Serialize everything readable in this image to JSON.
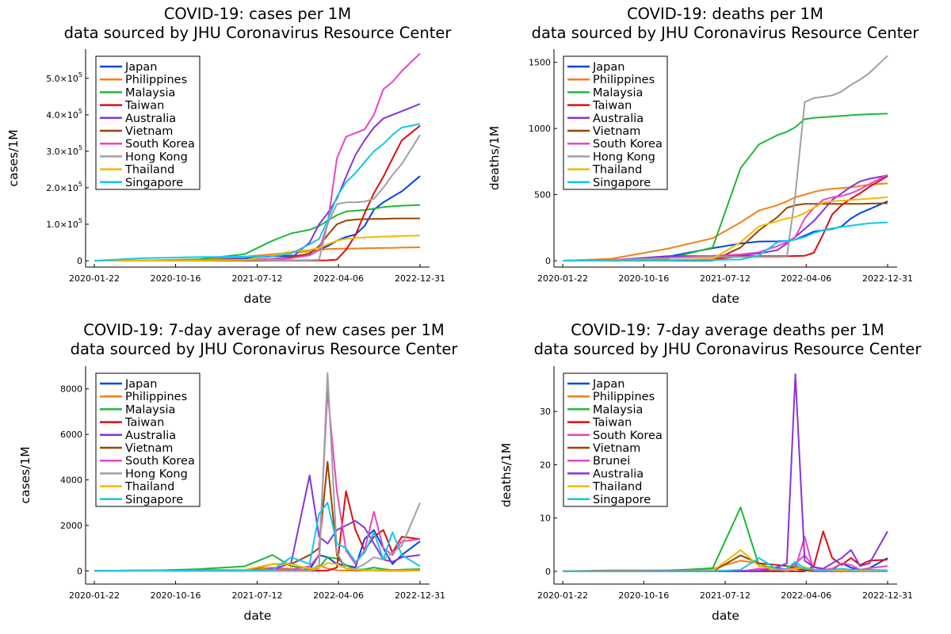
{
  "x_ticks": [
    "2020-01-22",
    "2020-10-16",
    "2021-07-12",
    "2022-04-06",
    "2022-12-31"
  ],
  "x_anchor_dates": [
    "2020-01-22",
    "2020-07-01",
    "2021-01-01",
    "2021-06-01",
    "2021-09-01",
    "2021-11-01",
    "2022-01-01",
    "2022-02-01",
    "2022-03-01",
    "2022-04-01",
    "2022-05-01",
    "2022-06-01",
    "2022-07-01",
    "2022-08-01",
    "2022-09-01",
    "2022-10-01",
    "2022-11-01",
    "2022-12-31"
  ],
  "colors": {
    "Japan": "#0044ee",
    "Philippines": "#f57f17",
    "Malaysia": "#1db83a",
    "Taiwan": "#dd0f0f",
    "Australia": "#8833dd",
    "Vietnam": "#994400",
    "South Korea": "#e846c1",
    "Hong Kong": "#a0a0a0",
    "Thailand": "#f5b800",
    "Singapore": "#11c8ee",
    "Brunei": "#e846c1"
  },
  "chart_data": [
    {
      "type": "line",
      "title": "COVID-19: cases per 1M",
      "subtitle": "data sourced by JHU Coronavirus Resource Center",
      "xlabel": "date",
      "ylabel": "cases/1M",
      "xlim": [
        "2020-01-22",
        "2022-12-31"
      ],
      "ylim": [
        0,
        580000
      ],
      "yticks": [
        0,
        100000,
        200000,
        300000,
        400000,
        500000
      ],
      "ytick_labels": [
        {
          "t": "0"
        },
        {
          "t": "1.0×10",
          "sup": "5"
        },
        {
          "t": "2.0×10",
          "sup": "5"
        },
        {
          "t": "3.0×10",
          "sup": "5"
        },
        {
          "t": "4.0×10",
          "sup": "5"
        },
        {
          "t": "5.0×10",
          "sup": "5"
        }
      ],
      "legend": "top-left",
      "series": [
        {
          "name": "Japan",
          "values": [
            0,
            100,
            2000,
            6000,
            12000,
            14000,
            15000,
            30000,
            40000,
            55000,
            65000,
            72000,
            95000,
            140000,
            160000,
            175000,
            190000,
            232000
          ]
        },
        {
          "name": "Philippines",
          "values": [
            0,
            300,
            4000,
            11000,
            18000,
            23000,
            25000,
            29000,
            32000,
            33000,
            33000,
            33500,
            34000,
            34500,
            35000,
            35500,
            36000,
            37000
          ]
        },
        {
          "name": "Malaysia",
          "values": [
            0,
            300,
            4000,
            18000,
            55000,
            75000,
            85000,
            95000,
            110000,
            125000,
            135000,
            137000,
            139000,
            143000,
            147000,
            149000,
            151000,
            153000
          ]
        },
        {
          "name": "Taiwan",
          "values": [
            0,
            20,
            40,
            80,
            700,
            700,
            700,
            800,
            1000,
            3000,
            30000,
            70000,
            130000,
            185000,
            230000,
            280000,
            330000,
            370000
          ]
        },
        {
          "name": "Australia",
          "values": [
            0,
            400,
            1000,
            1200,
            3000,
            7000,
            50000,
            100000,
            130000,
            170000,
            230000,
            290000,
            330000,
            365000,
            390000,
            400000,
            410000,
            430000
          ]
        },
        {
          "name": "Vietnam",
          "values": [
            0,
            5,
            20,
            100,
            5000,
            10000,
            20000,
            40000,
            70000,
            100000,
            110000,
            113000,
            114000,
            114500,
            115000,
            115500,
            116000,
            116000
          ]
        },
        {
          "name": "South Korea",
          "values": [
            0,
            300,
            1200,
            3000,
            5000,
            7000,
            15000,
            30000,
            100000,
            280000,
            340000,
            350000,
            360000,
            400000,
            470000,
            490000,
            520000,
            568000
          ]
        },
        {
          "name": "Hong Kong",
          "values": [
            0,
            300,
            1200,
            1600,
            1600,
            1600,
            1700,
            3000,
            100000,
            155000,
            160000,
            160000,
            162000,
            170000,
            200000,
            235000,
            265000,
            345000
          ]
        },
        {
          "name": "Thailand",
          "values": [
            0,
            50,
            200,
            2000,
            15000,
            25000,
            30000,
            35000,
            45000,
            55000,
            60000,
            62000,
            64000,
            65000,
            66000,
            67000,
            68000,
            69000
          ]
        },
        {
          "name": "Singapore",
          "values": [
            0,
            7000,
            10000,
            11000,
            12000,
            20000,
            45000,
            60000,
            110000,
            175000,
            215000,
            240000,
            270000,
            300000,
            320000,
            345000,
            365000,
            375000
          ]
        }
      ]
    },
    {
      "type": "line",
      "title": "COVID-19: deaths per 1M",
      "subtitle": "data sourced by JHU Coronavirus Resource Center",
      "xlabel": "date",
      "ylabel": "deaths/1M",
      "xlim": [
        "2020-01-22",
        "2022-12-31"
      ],
      "ylim": [
        0,
        1600
      ],
      "yticks": [
        0,
        500,
        1000,
        1500
      ],
      "ytick_labels": [
        {
          "t": "0"
        },
        {
          "t": "500"
        },
        {
          "t": "1000"
        },
        {
          "t": "1500"
        }
      ],
      "legend": "top-left",
      "series": [
        {
          "name": "Japan",
          "values": [
            0,
            5,
            30,
            95,
            130,
            145,
            147,
            150,
            160,
            190,
            220,
            230,
            240,
            260,
            320,
            360,
            390,
            450
          ]
        },
        {
          "name": "Philippines",
          "values": [
            0,
            15,
            90,
            170,
            290,
            380,
            420,
            450,
            480,
            500,
            520,
            535,
            545,
            550,
            555,
            565,
            575,
            585
          ]
        },
        {
          "name": "Malaysia",
          "values": [
            0,
            5,
            15,
            100,
            700,
            880,
            950,
            975,
            1010,
            1070,
            1080,
            1085,
            1090,
            1095,
            1100,
            1105,
            1108,
            1112
          ]
        },
        {
          "name": "Taiwan",
          "values": [
            0,
            0.3,
            0.3,
            10,
            35,
            35,
            35,
            35,
            36,
            38,
            60,
            200,
            350,
            420,
            470,
            510,
            560,
            640
          ]
        },
        {
          "name": "Australia",
          "values": [
            0,
            4,
            35,
            36,
            40,
            55,
            80,
            130,
            180,
            240,
            300,
            380,
            460,
            510,
            560,
            600,
            620,
            645
          ]
        },
        {
          "name": "Vietnam",
          "values": [
            0,
            0.1,
            0.4,
            1,
            100,
            230,
            330,
            400,
            420,
            430,
            430,
            430,
            430,
            430,
            430,
            430,
            432,
            435
          ]
        },
        {
          "name": "South Korea",
          "values": [
            0,
            6,
            20,
            38,
            48,
            65,
            110,
            140,
            180,
            320,
            400,
            460,
            480,
            490,
            510,
            540,
            580,
            650
          ]
        },
        {
          "name": "Hong Kong",
          "values": [
            0,
            4,
            20,
            28,
            28,
            28,
            29,
            30,
            500,
            1200,
            1230,
            1240,
            1250,
            1280,
            1330,
            1370,
            1420,
            1550
          ]
        },
        {
          "name": "Thailand",
          "values": [
            0,
            1,
            1,
            15,
            140,
            260,
            300,
            320,
            330,
            360,
            400,
            440,
            450,
            455,
            460,
            465,
            470,
            480
          ]
        },
        {
          "name": "Singapore",
          "values": [
            0,
            4,
            5,
            6,
            9,
            40,
            140,
            150,
            160,
            180,
            210,
            230,
            245,
            255,
            265,
            275,
            283,
            290
          ]
        }
      ]
    },
    {
      "type": "line",
      "title": "COVID-19: 7-day average of new cases per 1M",
      "subtitle": "data sourced by JHU Coronavirus Resource Center",
      "xlabel": "date",
      "ylabel": "cases/1M",
      "xlim": [
        "2020-01-22",
        "2022-12-31"
      ],
      "ylim": [
        -300,
        9000
      ],
      "yticks": [
        0,
        2000,
        4000,
        6000,
        8000
      ],
      "ytick_labels": [
        {
          "t": "0"
        },
        {
          "t": "2000"
        },
        {
          "t": "4000"
        },
        {
          "t": "6000"
        },
        {
          "t": "8000"
        }
      ],
      "legend": "top-left",
      "series": [
        {
          "name": "Japan",
          "values": [
            0,
            10,
            40,
            40,
            120,
            20,
            60,
            700,
            600,
            300,
            250,
            150,
            1400,
            1800,
            1000,
            300,
            700,
            1300
          ]
        },
        {
          "name": "Philippines",
          "values": [
            0,
            20,
            20,
            50,
            150,
            90,
            20,
            250,
            100,
            30,
            15,
            15,
            30,
            40,
            40,
            25,
            20,
            15
          ]
        },
        {
          "name": "Malaysia",
          "values": [
            0,
            5,
            80,
            200,
            700,
            200,
            100,
            150,
            600,
            550,
            250,
            60,
            70,
            150,
            80,
            40,
            60,
            80
          ]
        },
        {
          "name": "Taiwan",
          "values": [
            0,
            0,
            0,
            10,
            0,
            0,
            0,
            10,
            10,
            150,
            3500,
            1800,
            900,
            1500,
            1800,
            800,
            1500,
            1400
          ]
        },
        {
          "name": "Australia",
          "values": [
            0,
            20,
            5,
            5,
            60,
            350,
            4200,
            1500,
            1200,
            1800,
            2000,
            2200,
            1900,
            1200,
            500,
            400,
            600,
            700
          ]
        },
        {
          "name": "Vietnam",
          "values": [
            0,
            0,
            0,
            0,
            300,
            300,
            700,
            1000,
            4800,
            700,
            100,
            20,
            20,
            20,
            10,
            10,
            10,
            20
          ]
        },
        {
          "name": "South Korea",
          "values": [
            0,
            5,
            20,
            30,
            60,
            60,
            200,
            700,
            7900,
            3500,
            900,
            300,
            900,
            2600,
            1000,
            700,
            1300,
            1400
          ]
        },
        {
          "name": "Hong Kong",
          "values": [
            0,
            10,
            5,
            0,
            0,
            0,
            0,
            100,
            8700,
            800,
            100,
            100,
            300,
            600,
            500,
            800,
            1100,
            3000
          ]
        },
        {
          "name": "Thailand",
          "values": [
            0,
            0,
            0,
            50,
            300,
            300,
            100,
            150,
            350,
            300,
            100,
            50,
            30,
            30,
            20,
            20,
            20,
            20
          ]
        },
        {
          "name": "Singapore",
          "values": [
            0,
            30,
            5,
            5,
            50,
            600,
            300,
            2500,
            3000,
            1200,
            1000,
            400,
            800,
            1700,
            500,
            1700,
            700,
            200
          ]
        }
      ]
    },
    {
      "type": "line",
      "title": "COVID-19: 7-day average deaths per 1M",
      "subtitle": "data sourced by JHU Coronavirus Resource Center",
      "xlabel": "date",
      "ylabel": "deaths/1M",
      "xlim": [
        "2020-01-22",
        "2022-12-31"
      ],
      "ylim": [
        -1.2,
        38.5
      ],
      "yticks": [
        0,
        10,
        20,
        30
      ],
      "ytick_labels": [
        {
          "t": "0"
        },
        {
          "t": "10"
        },
        {
          "t": "20"
        },
        {
          "t": "30"
        }
      ],
      "legend": "top-left",
      "series": [
        {
          "name": "Japan",
          "values": [
            0,
            0,
            0.1,
            0.1,
            0.1,
            0,
            0.1,
            0.3,
            0.6,
            0.2,
            0.2,
            0.1,
            0.3,
            1.5,
            0.7,
            0.2,
            0.6,
            2.5
          ]
        },
        {
          "name": "Philippines",
          "values": [
            0,
            0.2,
            0.2,
            0.5,
            2,
            1.5,
            0.1,
            0.5,
            1.2,
            0.2,
            0.1,
            0,
            0,
            0.1,
            0.1,
            0.1,
            0.1,
            0.1
          ]
        },
        {
          "name": "Malaysia",
          "values": [
            0,
            0,
            0.1,
            0.6,
            12,
            1,
            0.6,
            0.3,
            1,
            0.5,
            0.1,
            0,
            0,
            0.1,
            0.1,
            0,
            0,
            0
          ]
        },
        {
          "name": "Taiwan",
          "values": [
            0,
            0,
            0,
            0.1,
            0,
            0,
            0,
            0,
            0,
            0,
            1,
            7.5,
            2.5,
            1.2,
            2.5,
            1.2,
            2,
            2.2
          ]
        },
        {
          "name": "South Korea",
          "values": [
            0,
            0,
            0.1,
            0.1,
            0.1,
            0.2,
            0.8,
            0.3,
            1.5,
            3,
            0.8,
            0.3,
            0.5,
            1.5,
            1.2,
            0.3,
            0.6,
            1
          ]
        },
        {
          "name": "Vietnam",
          "values": [
            0,
            0,
            0,
            0,
            3,
            1.5,
            1.2,
            1,
            0.5,
            0.2,
            0,
            0,
            0,
            0,
            0,
            0,
            0,
            0
          ]
        },
        {
          "name": "Brunei",
          "values": [
            0,
            0,
            0,
            0,
            0,
            0.5,
            0.5,
            0,
            0.5,
            6.5,
            0,
            0,
            0,
            0,
            0,
            0,
            0,
            0
          ]
        },
        {
          "name": "Australia",
          "values": [
            0,
            0,
            0,
            0,
            0,
            0,
            0.8,
            1.5,
            37,
            2,
            0.8,
            0.5,
            1.5,
            2.5,
            4,
            1,
            1.5,
            7.5
          ]
        },
        {
          "name": "Thailand",
          "values": [
            0,
            0,
            0,
            0.1,
            4,
            1,
            0.3,
            0.3,
            0.5,
            0.8,
            0.3,
            0.2,
            0.2,
            0.2,
            0.2,
            0.1,
            0.1,
            0.1
          ]
        },
        {
          "name": "Singapore",
          "values": [
            0,
            0,
            0,
            0,
            0.3,
            2.5,
            0.3,
            0.5,
            1.8,
            0.5,
            0.3,
            0.2,
            0.3,
            0.5,
            0.3,
            0.3,
            0.3,
            0.2
          ]
        }
      ]
    }
  ]
}
